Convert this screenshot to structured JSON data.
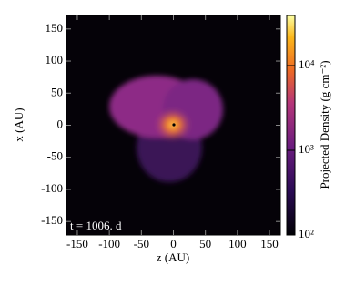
{
  "chart_data": {
    "type": "image",
    "xlabel": "z (AU)",
    "ylabel": "x (AU)",
    "xlim": [
      -167,
      167
    ],
    "ylim": [
      -171,
      171
    ],
    "xticks": [
      -150,
      -100,
      -50,
      0,
      50,
      100,
      150
    ],
    "yticks": [
      -150,
      -100,
      -50,
      0,
      50,
      100,
      150
    ],
    "annotation": "t = 1006. d",
    "colorbar": {
      "label": "Projected Density (g cm⁻²)",
      "log": true,
      "lim": [
        100,
        39000
      ],
      "ticks": [
        {
          "value": 100,
          "label": "10²"
        },
        {
          "value": 1000,
          "label": "10³"
        },
        {
          "value": 10000,
          "label": "10⁴"
        }
      ]
    }
  }
}
